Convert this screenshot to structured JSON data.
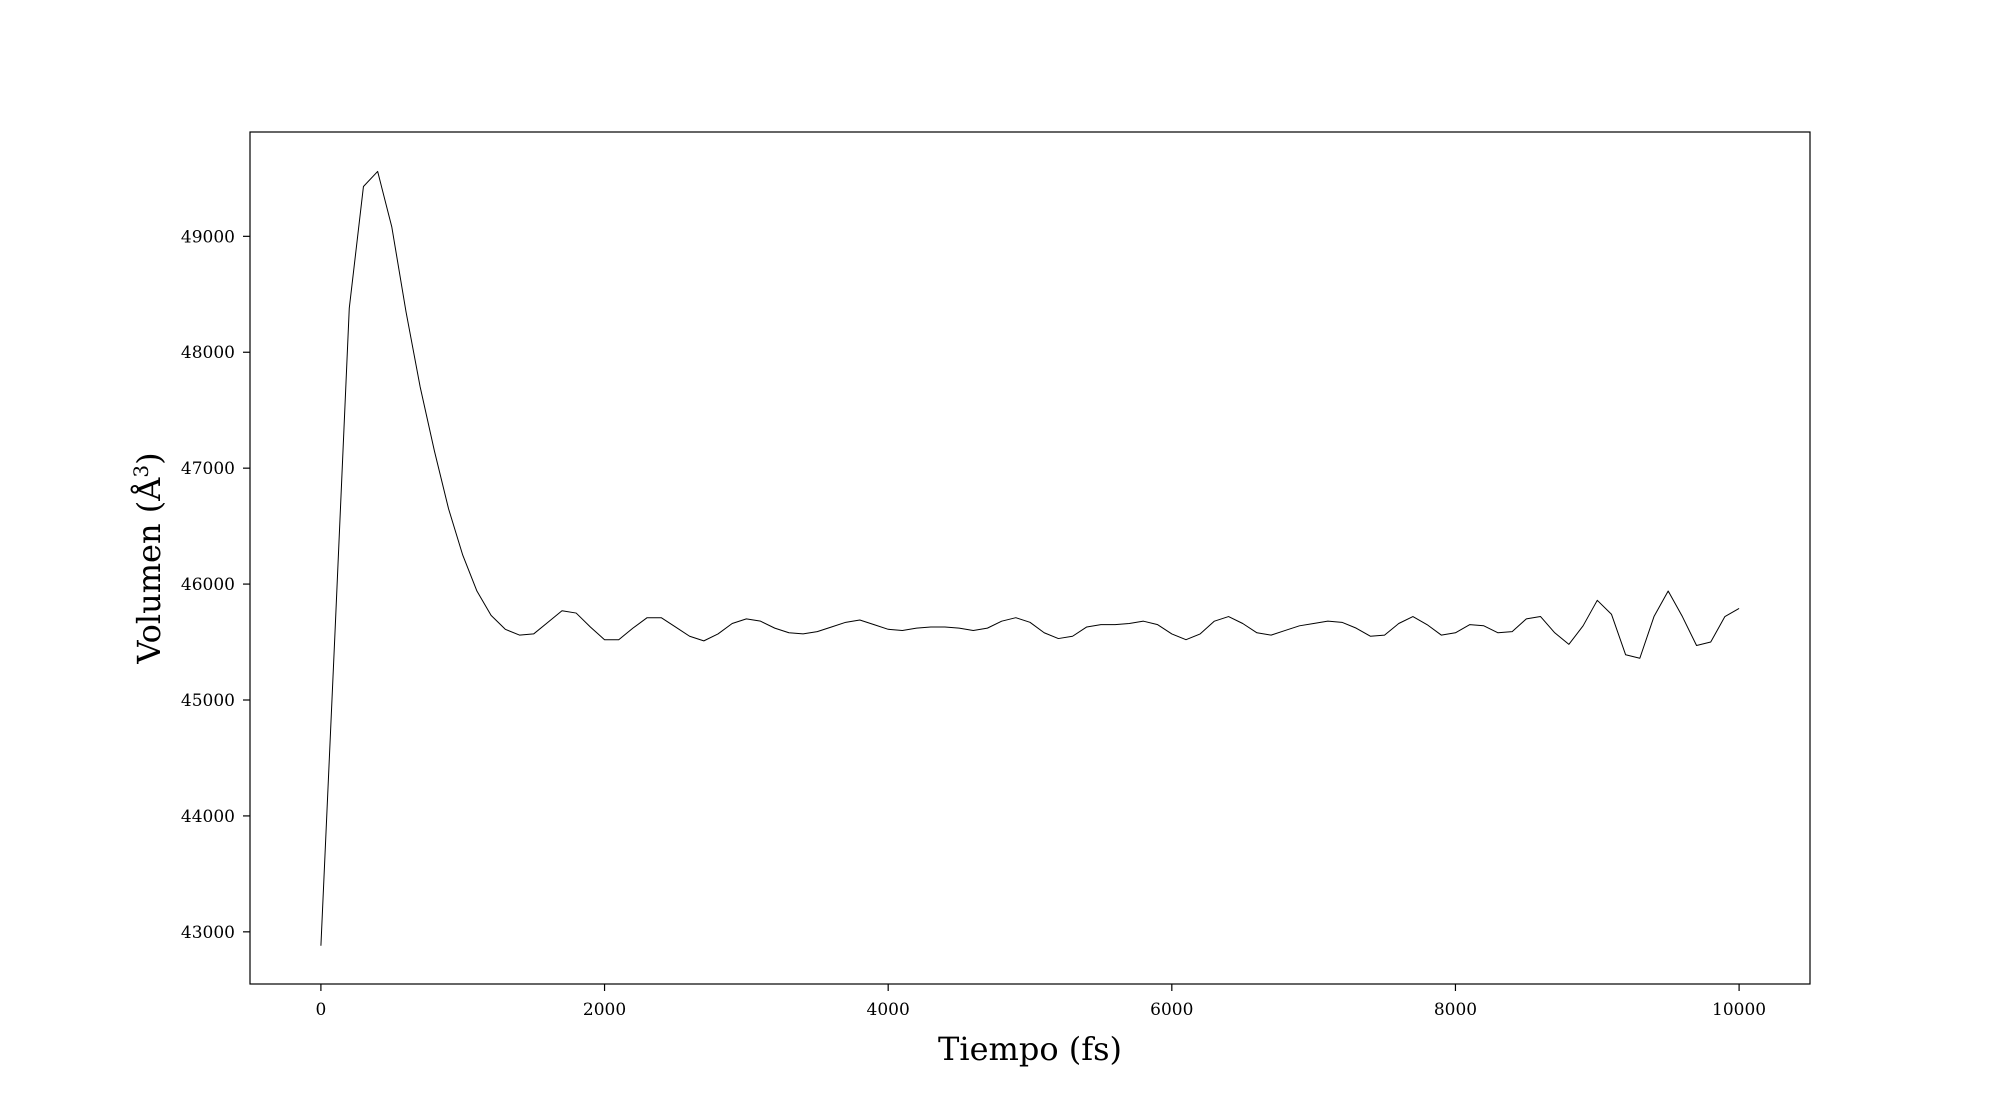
{
  "chart_data": {
    "type": "line",
    "title": "",
    "xlabel": "Tiempo (fs)",
    "ylabel": "Volumen (Å3)",
    "ylabel_text": "Volumen (Å",
    "ylabel_superscript": "3",
    "ylabel_close": ")",
    "xlim": [
      -500,
      10500
    ],
    "ylim": [
      42550,
      49900
    ],
    "x_ticks": [
      0,
      2000,
      4000,
      6000,
      8000,
      10000
    ],
    "x_tick_labels": [
      "0",
      "2000",
      "4000",
      "6000",
      "8000",
      "10000"
    ],
    "y_ticks": [
      43000,
      44000,
      45000,
      46000,
      47000,
      48000,
      49000
    ],
    "y_tick_labels": [
      "43000",
      "44000",
      "45000",
      "46000",
      "47000",
      "48000",
      "49000"
    ],
    "grid": false,
    "line_color": "#000000",
    "series": [
      {
        "x": [
          0,
          100,
          200,
          300,
          400,
          500,
          600,
          700,
          800,
          900,
          1000,
          1100,
          1200,
          1300,
          1400,
          1500,
          1600,
          1700,
          1800,
          1900,
          2000,
          2100,
          2200,
          2300,
          2400,
          2500,
          2600,
          2700,
          2800,
          2900,
          3000,
          3100,
          3200,
          3300,
          3400,
          3500,
          3600,
          3700,
          3800,
          3900,
          4000,
          4100,
          4200,
          4300,
          4400,
          4500,
          4600,
          4700,
          4800,
          4900,
          5000,
          5100,
          5200,
          5300,
          5400,
          5500,
          5600,
          5700,
          5800,
          5900,
          6000,
          6100,
          6200,
          6300,
          6400,
          6500,
          6600,
          6700,
          6800,
          6900,
          7000,
          7100,
          7200,
          7300,
          7400,
          7500,
          7600,
          7700,
          7800,
          7900,
          8000,
          8100,
          8200,
          8300,
          8400,
          8500,
          8600,
          8700,
          8800,
          8900,
          9000,
          9100,
          9200,
          9300,
          9400,
          9500,
          9600,
          9700,
          9800,
          9900,
          10000
        ],
        "values": [
          42880,
          45600,
          48380,
          49430,
          49560,
          49080,
          48350,
          47700,
          47150,
          46650,
          46250,
          45940,
          45730,
          45610,
          45560,
          45570,
          45670,
          45770,
          45750,
          45630,
          45520,
          45520,
          45620,
          45710,
          45710,
          45630,
          45550,
          45510,
          45570,
          45660,
          45700,
          45680,
          45620,
          45580,
          45570,
          45590,
          45630,
          45670,
          45690,
          45650,
          45610,
          45600,
          45620,
          45630,
          45630,
          45620,
          45600,
          45620,
          45680,
          45710,
          45670,
          45580,
          45530,
          45550,
          45630,
          45650,
          45650,
          45660,
          45680,
          45650,
          45570,
          45520,
          45570,
          45680,
          45720,
          45660,
          45580,
          45560,
          45600,
          45640,
          45660,
          45680,
          45670,
          45620,
          45550,
          45560,
          45660,
          45720,
          45650,
          45560,
          45580,
          45650,
          45640,
          45580,
          45590,
          45700,
          45720,
          45580,
          45480,
          45640,
          45860,
          45740,
          45390,
          45360,
          45720,
          45940,
          45720,
          45470,
          45500,
          45720,
          45790
        ]
      }
    ]
  }
}
